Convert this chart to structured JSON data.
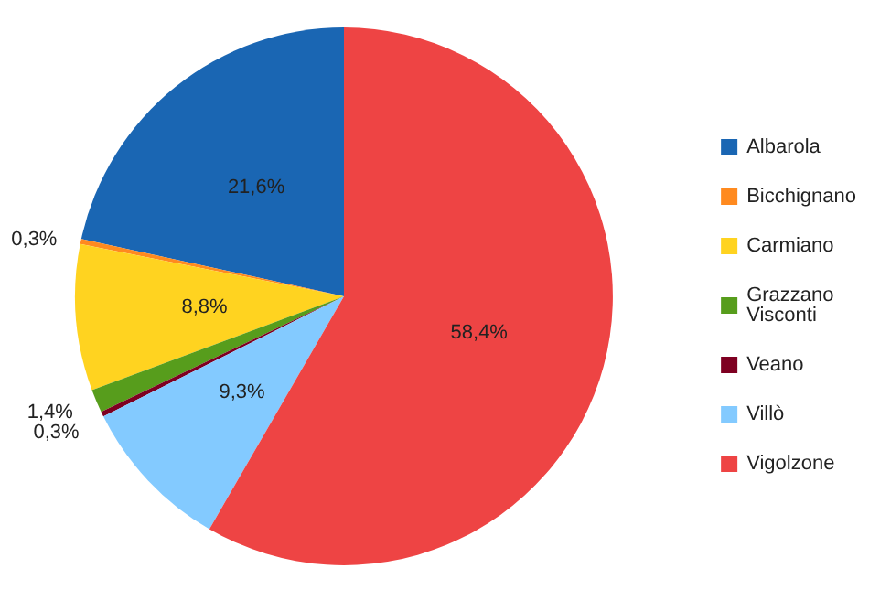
{
  "chart_data": {
    "type": "pie",
    "categories": [
      "Albarola",
      "Bicchignano",
      "Carmiano",
      "Grazzano Visconti",
      "Veano",
      "Villò",
      "Vigolzone"
    ],
    "values": [
      21.6,
      0.3,
      8.8,
      1.4,
      0.3,
      9.3,
      58.4
    ],
    "value_labels": [
      "21,6%",
      "0,3%",
      "8,8%",
      "1,4%",
      "0,3%",
      "9,3%",
      "58,4%"
    ],
    "colors": [
      "#1a66b3",
      "#ff8a1f",
      "#ffd320",
      "#579d1c",
      "#7e0021",
      "#83caff",
      "#ee4444"
    ],
    "legend": "right"
  }
}
